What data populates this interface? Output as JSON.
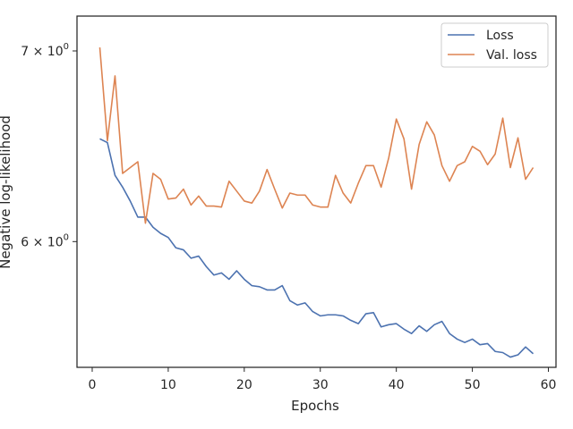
{
  "chart_data": {
    "type": "line",
    "title": "",
    "xlabel": "Epochs",
    "ylabel": "Negative log-likelihood",
    "yscale": "log",
    "xlim": [
      -2,
      61
    ],
    "ylim": [
      5.42,
      7.2
    ],
    "grid": false,
    "legend_position": "top-right",
    "x_ticks": [
      {
        "value": 0,
        "label": "0"
      },
      {
        "value": 10,
        "label": "10"
      },
      {
        "value": 20,
        "label": "20"
      },
      {
        "value": 30,
        "label": "30"
      },
      {
        "value": 40,
        "label": "40"
      },
      {
        "value": 50,
        "label": "50"
      },
      {
        "value": 60,
        "label": "60"
      }
    ],
    "y_ticks": [
      {
        "value": 6,
        "mantissa": "6",
        "base": "10",
        "exponent": "0"
      },
      {
        "value": 7,
        "mantissa": "7",
        "base": "10",
        "exponent": "0"
      }
    ],
    "x": [
      1,
      2,
      3,
      4,
      5,
      6,
      7,
      8,
      9,
      10,
      11,
      12,
      13,
      14,
      15,
      16,
      17,
      18,
      19,
      20,
      21,
      22,
      23,
      24,
      25,
      26,
      27,
      28,
      29,
      30,
      31,
      32,
      33,
      34,
      35,
      36,
      37,
      38,
      39,
      40,
      41,
      42,
      43,
      44,
      45,
      46,
      47,
      48,
      49,
      50,
      51,
      52,
      53,
      54,
      55,
      56,
      57,
      58
    ],
    "series": [
      {
        "name": "Loss",
        "color": "#4c72b0",
        "values": [
          6.52,
          6.5,
          6.33,
          6.27,
          6.2,
          6.12,
          6.12,
          6.07,
          6.04,
          6.02,
          5.97,
          5.96,
          5.92,
          5.93,
          5.88,
          5.84,
          5.85,
          5.82,
          5.86,
          5.82,
          5.79,
          5.785,
          5.77,
          5.77,
          5.79,
          5.72,
          5.7,
          5.71,
          5.67,
          5.65,
          5.655,
          5.655,
          5.65,
          5.63,
          5.615,
          5.66,
          5.665,
          5.6,
          5.61,
          5.615,
          5.59,
          5.57,
          5.605,
          5.58,
          5.61,
          5.625,
          5.57,
          5.545,
          5.53,
          5.545,
          5.52,
          5.525,
          5.49,
          5.485,
          5.465,
          5.475,
          5.51,
          5.48
        ]
      },
      {
        "name": "Val. loss",
        "color": "#dd8452",
        "values": [
          7.02,
          6.51,
          6.86,
          6.34,
          6.37,
          6.4,
          6.09,
          6.34,
          6.31,
          6.21,
          6.215,
          6.26,
          6.18,
          6.225,
          6.175,
          6.175,
          6.17,
          6.3,
          6.25,
          6.2,
          6.19,
          6.25,
          6.36,
          6.26,
          6.165,
          6.24,
          6.23,
          6.23,
          6.18,
          6.17,
          6.17,
          6.33,
          6.24,
          6.19,
          6.29,
          6.38,
          6.38,
          6.27,
          6.42,
          6.625,
          6.52,
          6.26,
          6.49,
          6.61,
          6.54,
          6.38,
          6.3,
          6.38,
          6.4,
          6.48,
          6.455,
          6.385,
          6.44,
          6.63,
          6.37,
          6.525,
          6.31,
          6.37
        ]
      }
    ]
  }
}
